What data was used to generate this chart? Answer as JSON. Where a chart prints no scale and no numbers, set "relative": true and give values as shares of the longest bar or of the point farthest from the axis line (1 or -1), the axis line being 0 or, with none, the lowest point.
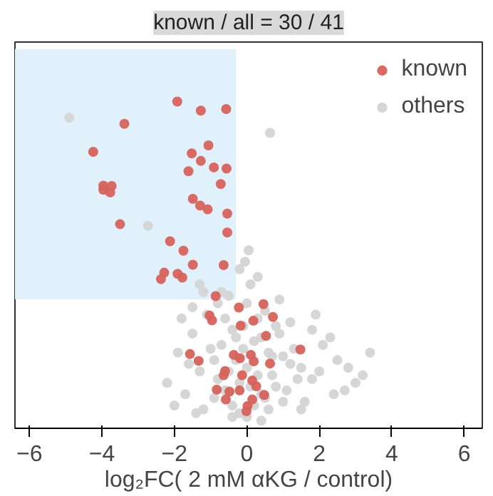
{
  "chart_data": {
    "type": "scatter",
    "title": "known / all = 30 / 41",
    "xlabel": "log₂FC( 2 mM αKG / control)",
    "relative": true,
    "xlim": [
      -6.4,
      6.5
    ],
    "xticks": [
      -6,
      -4,
      -2,
      0,
      2,
      4,
      6
    ],
    "marker": "circle",
    "legend": "top right",
    "grid": false,
    "series": [
      {
        "type": "line",
        "marker": "none",
        "x": [
          -6.4,
          -0.3
        ],
        "values": [
          1,
          1
        ],
        "lower": [
          0.34,
          0.34
        ],
        "upper": [
          1,
          1
        ],
        "color": "#e1f1fb"
      },
      {
        "name": "others",
        "color": "#d4d4d4",
        "x": [
          -4.9,
          0.64,
          -2.73,
          -2.2,
          -1.9,
          -1.7,
          -1.5,
          -1.3,
          -1.1,
          -0.9,
          -0.7,
          -0.5,
          -0.3,
          -0.1,
          0.1,
          0.3,
          0.5,
          0.7,
          0.9,
          1.1,
          1.3,
          1.5,
          1.8,
          2.1,
          2.5,
          3.0,
          3.4,
          -2.0,
          -1.6,
          -1.2,
          -0.8,
          -0.4,
          0.0,
          0.4,
          0.8,
          1.2,
          1.6,
          2.0,
          2.4,
          2.8,
          -1.4,
          -1.0,
          -0.6,
          -0.2,
          0.2,
          0.6,
          1.0,
          1.4,
          1.8,
          -1.2,
          -0.8,
          -0.4,
          0.0,
          0.4,
          0.8,
          1.2,
          -0.9,
          -0.5,
          -0.1,
          0.3,
          0.7,
          1.0,
          -0.6,
          -0.2,
          0.2,
          0.6,
          -0.3,
          0.1,
          0.5,
          -1.8,
          -1.3,
          1.9,
          2.3,
          2.7,
          3.2,
          -0.2,
          0.3,
          -0.7,
          0.9,
          -1.5,
          1.5,
          -0.4,
          0.4,
          0.0,
          -0.05,
          0.05
        ],
        "values": [
          0.82,
          0.78,
          0.535,
          0.12,
          0.2,
          0.09,
          0.25,
          0.15,
          0.3,
          0.08,
          0.22,
          0.35,
          0.18,
          0.27,
          0.38,
          0.14,
          0.31,
          0.19,
          0.25,
          0.1,
          0.21,
          0.16,
          0.13,
          0.22,
          0.18,
          0.12,
          0.2,
          0.06,
          0.17,
          0.05,
          0.13,
          0.26,
          0.33,
          0.24,
          0.11,
          0.28,
          0.07,
          0.15,
          0.09,
          0.16,
          0.04,
          0.21,
          0.29,
          0.12,
          0.23,
          0.05,
          0.19,
          0.13,
          0.26,
          0.36,
          0.33,
          0.06,
          0.16,
          0.09,
          0.27,
          0.17,
          0.18,
          0.15,
          0.21,
          0.29,
          0.14,
          0.07,
          0.1,
          0.04,
          0.06,
          0.2,
          0.24,
          0.11,
          0.08,
          0.29,
          0.38,
          0.3,
          0.24,
          0.1,
          0.14,
          0.42,
          0.4,
          0.36,
          0.34,
          0.32,
          0.05,
          0.03,
          0.02,
          0.03,
          0.44,
          0.47
        ]
      },
      {
        "name": "known",
        "color": "#d6625c",
        "x": [
          -1.92,
          -1.27,
          -0.57,
          -3.38,
          -4.24,
          -1.06,
          -1.52,
          -1.27,
          -0.91,
          -0.56,
          -1.61,
          -0.72,
          -3.96,
          -3.73,
          -3.96,
          -3.77,
          -1.49,
          -1.29,
          -1.08,
          -0.54,
          -3.5,
          -0.54,
          -2.12,
          -1.75,
          -1.49,
          -0.64,
          -2.28,
          -2.37,
          -1.91,
          -1.78,
          -0.86,
          -1.03,
          -0.96,
          -0.22,
          0.46,
          0.72,
          0.18,
          -0.17,
          0.53,
          1.48,
          -1.57,
          -1.33,
          -0.36,
          -0.19,
          0.11,
          0.19,
          0.64,
          -0.6,
          -0.64,
          -0.13,
          0.15,
          0.26,
          -0.83,
          -0.48,
          -0.2,
          -0.58,
          0.15,
          0.48,
          0.02,
          -0.01
        ],
        "values": [
          0.863,
          0.839,
          0.843,
          0.804,
          0.73,
          0.747,
          0.726,
          0.706,
          0.689,
          0.686,
          0.679,
          0.645,
          0.641,
          0.64,
          0.63,
          0.623,
          0.606,
          0.588,
          0.578,
          0.567,
          0.539,
          0.517,
          0.494,
          0.469,
          0.432,
          0.431,
          0.411,
          0.394,
          0.408,
          0.398,
          0.349,
          0.298,
          0.285,
          0.319,
          0.328,
          0.294,
          0.284,
          0.271,
          0.244,
          0.208,
          0.196,
          0.178,
          0.194,
          0.185,
          0.194,
          0.177,
          0.171,
          0.151,
          0.14,
          0.14,
          0.126,
          0.111,
          0.102,
          0.097,
          0.1,
          0.076,
          0.076,
          0.088,
          0.059,
          0.045
        ]
      }
    ]
  }
}
